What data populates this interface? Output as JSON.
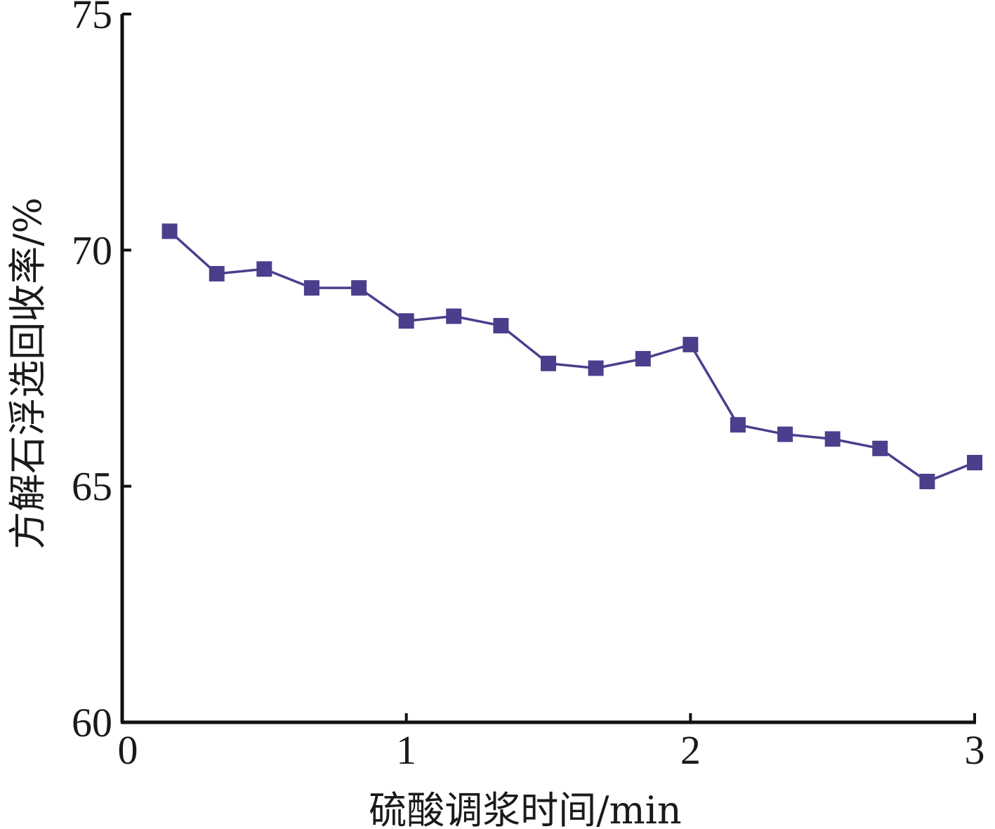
{
  "chart_data": {
    "type": "line",
    "title": "",
    "xlabel": "硫酸调浆时间/min",
    "ylabel": "方解石浮选回收率/%",
    "xlim": [
      0,
      3
    ],
    "ylim": [
      60,
      75
    ],
    "x_ticks": [
      0,
      1,
      2,
      3
    ],
    "x_tick_labels": [
      "0",
      "1",
      "2",
      "3"
    ],
    "y_ticks": [
      60,
      65,
      70,
      75
    ],
    "y_tick_labels": [
      "60",
      "65",
      "70",
      "75"
    ],
    "grid": false,
    "marker": "square",
    "series": [
      {
        "color": "#4a3f8c",
        "x": [
          0.167,
          0.333,
          0.5,
          0.667,
          0.833,
          1.0,
          1.167,
          1.333,
          1.5,
          1.667,
          1.833,
          2.0,
          2.167,
          2.333,
          2.5,
          2.667,
          2.833,
          3.0
        ],
        "y": [
          70.4,
          69.5,
          69.6,
          69.2,
          69.2,
          68.5,
          68.6,
          68.4,
          67.6,
          67.5,
          67.7,
          68.0,
          66.3,
          66.1,
          66.0,
          65.8,
          65.1,
          65.5
        ]
      }
    ]
  }
}
